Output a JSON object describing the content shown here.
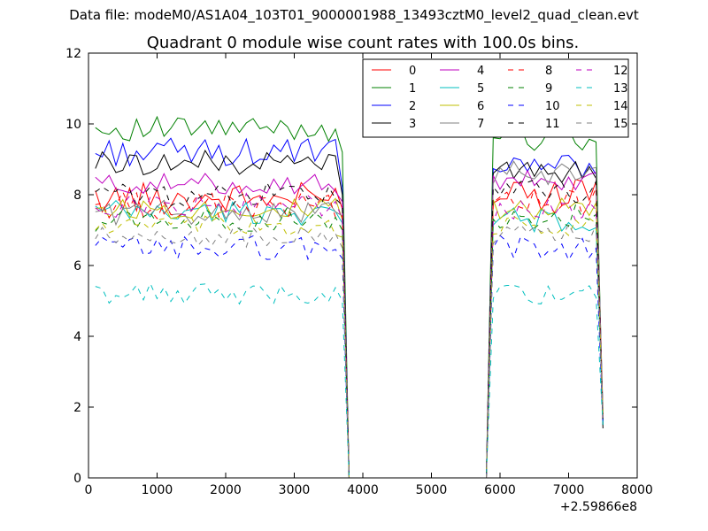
{
  "suptitle": "Data file: modeM0/AS1A04_103T01_9000001988_13493cztM0_level2_quad_clean.evt",
  "chart_data": {
    "type": "line",
    "title": "Quadrant 0 module wise count rates with 100.0s bins.",
    "xlabel": "",
    "ylabel": "",
    "x_offset_label": "+2.59866e8",
    "xlim": [
      0,
      8000
    ],
    "ylim": [
      0,
      12
    ],
    "x_ticks": [
      "0",
      "1000",
      "2000",
      "3000",
      "4000",
      "5000",
      "6000",
      "7000",
      "8000"
    ],
    "y_ticks": [
      "0",
      "2",
      "4",
      "6",
      "8",
      "10",
      "12"
    ],
    "grid": false,
    "legend_position": "top-right",
    "legend_columns": 4,
    "colors": {
      "r": "#ff0000",
      "g": "#008000",
      "b": "#0000ff",
      "k": "#000000",
      "m": "#bf00bf",
      "c": "#00bfbf",
      "y": "#bfbf00",
      "gray": "#808080"
    },
    "segments": [
      {
        "start": 100,
        "count": 37,
        "step": 100
      },
      {
        "start": 5900,
        "count": 17,
        "step": 100
      }
    ],
    "series": [
      {
        "name": "0",
        "color": "#ff0000",
        "dash": "solid",
        "level1": 7.9,
        "level2": 8.0,
        "amp": 0.45,
        "edge1": 7.6,
        "edge2": 1.6
      },
      {
        "name": "1",
        "color": "#008000",
        "dash": "solid",
        "level1": 9.85,
        "level2": 9.6,
        "amp": 0.35,
        "edge1": 9.2,
        "edge2": 1.5
      },
      {
        "name": "2",
        "color": "#0000ff",
        "dash": "solid",
        "level1": 9.2,
        "level2": 8.8,
        "amp": 0.4,
        "edge1": 8.2,
        "edge2": 1.8
      },
      {
        "name": "3",
        "color": "#000000",
        "dash": "solid",
        "level1": 8.9,
        "level2": 8.6,
        "amp": 0.35,
        "edge1": 8.0,
        "edge2": 1.5
      },
      {
        "name": "4",
        "color": "#bf00bf",
        "dash": "solid",
        "level1": 8.3,
        "level2": 8.4,
        "amp": 0.3,
        "edge1": 7.8,
        "edge2": 1.7
      },
      {
        "name": "5",
        "color": "#00bfbf",
        "dash": "solid",
        "level1": 7.5,
        "level2": 7.3,
        "amp": 0.35,
        "edge1": 7.2,
        "edge2": 1.6
      },
      {
        "name": "6",
        "color": "#bfbf00",
        "dash": "solid",
        "level1": 7.6,
        "level2": 7.6,
        "amp": 0.3,
        "edge1": 7.3,
        "edge2": 1.8
      },
      {
        "name": "7",
        "color": "#808080",
        "dash": "solid",
        "level1": 7.5,
        "level2": 8.6,
        "amp": 0.35,
        "edge1": 7.4,
        "edge2": 1.9
      },
      {
        "name": "8",
        "color": "#ff0000",
        "dash": "dashed",
        "level1": 7.7,
        "level2": 7.8,
        "amp": 0.4,
        "edge1": 7.4,
        "edge2": 1.7
      },
      {
        "name": "9",
        "color": "#008000",
        "dash": "dashed",
        "level1": 7.3,
        "level2": 7.4,
        "amp": 0.35,
        "edge1": 7.0,
        "edge2": 1.6
      },
      {
        "name": "10",
        "color": "#0000ff",
        "dash": "dashed",
        "level1": 6.5,
        "level2": 6.5,
        "amp": 0.35,
        "edge1": 6.2,
        "edge2": 1.5
      },
      {
        "name": "11",
        "color": "#000000",
        "dash": "dashed",
        "level1": 8.0,
        "level2": 8.1,
        "amp": 0.35,
        "edge1": 7.7,
        "edge2": 1.4
      },
      {
        "name": "12",
        "color": "#bf00bf",
        "dash": "dashed",
        "level1": 7.7,
        "level2": 7.5,
        "amp": 0.35,
        "edge1": 7.3,
        "edge2": 1.7
      },
      {
        "name": "13",
        "color": "#00bfbf",
        "dash": "dashed",
        "level1": 5.2,
        "level2": 5.2,
        "amp": 0.3,
        "edge1": 5.0,
        "edge2": 1.5
      },
      {
        "name": "14",
        "color": "#bfbf00",
        "dash": "dashed",
        "level1": 7.1,
        "level2": 7.1,
        "amp": 0.3,
        "edge1": 6.8,
        "edge2": 1.8
      },
      {
        "name": "15",
        "color": "#808080",
        "dash": "dashed",
        "level1": 6.8,
        "level2": 6.9,
        "amp": 0.3,
        "edge1": 6.5,
        "edge2": 1.7
      }
    ]
  }
}
